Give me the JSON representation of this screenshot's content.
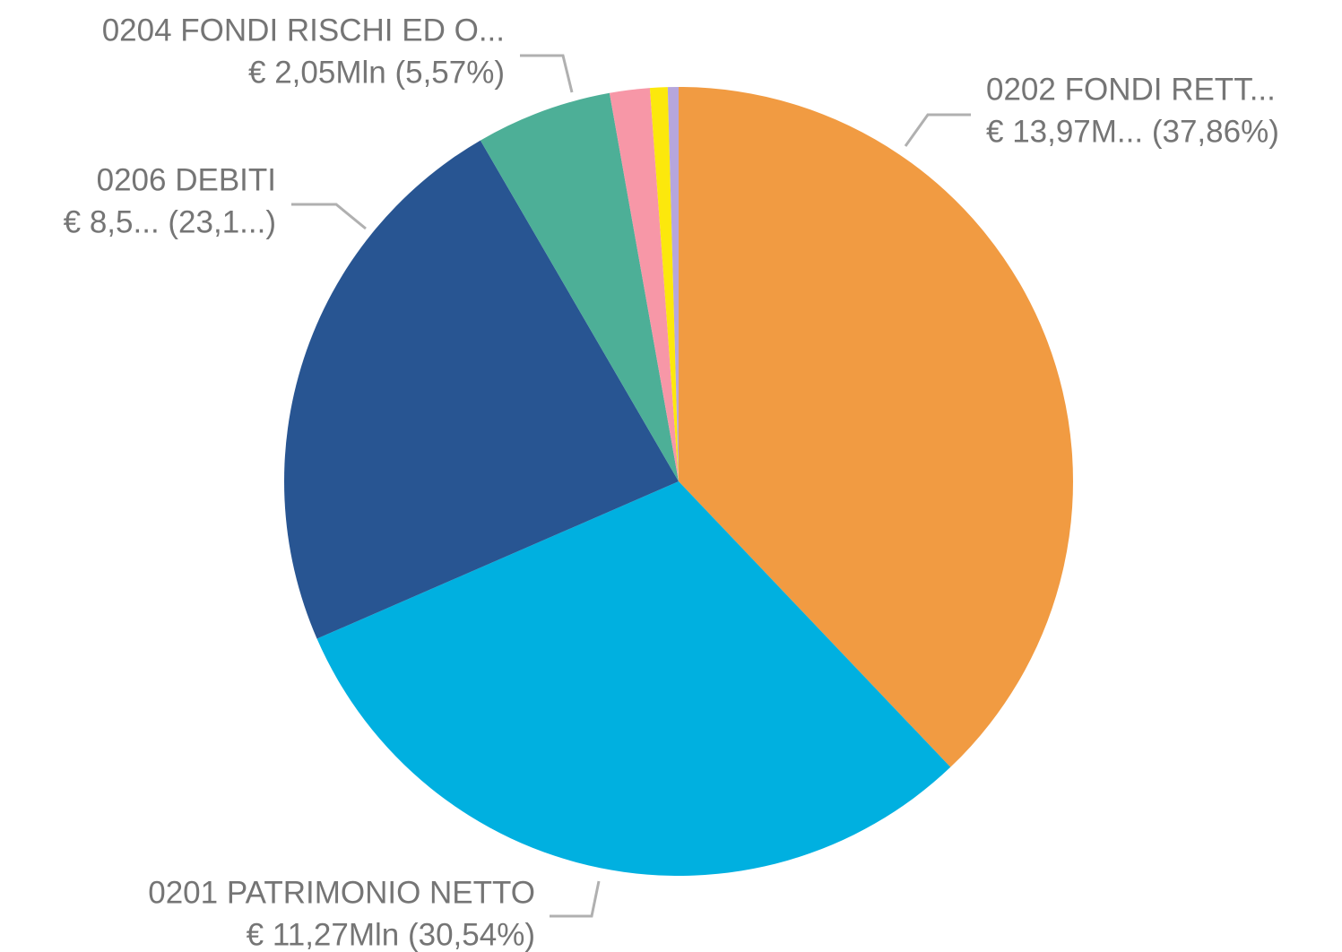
{
  "chart_data": {
    "type": "pie",
    "categories": [
      "0202 FONDI RETT...",
      "0201 PATRIMONIO NETTO",
      "0206 DEBITI",
      "0204 FONDI RISCHI ED O...",
      null,
      null,
      null
    ],
    "values": [
      37.86,
      30.54,
      23.13,
      5.57,
      1.64,
      0.72,
      0.44
    ],
    "value_labels": [
      "€ 13,97M... (37,86%)",
      "€ 11,27Mln (30,54%)",
      "€ 8,5... (23,1...)",
      "€ 2,05Mln (5,57%)",
      null,
      null,
      null
    ],
    "colors": [
      "#f19b42",
      "#00b0e0",
      "#285592",
      "#4daf97",
      "#f797a7",
      "#fce80c",
      "#b6a6dc"
    ]
  }
}
